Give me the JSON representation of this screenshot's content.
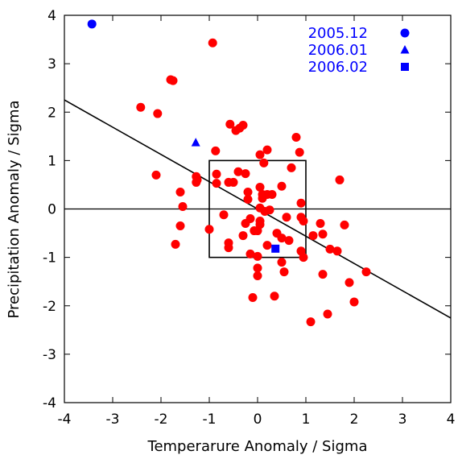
{
  "chart_data": {
    "type": "scatter",
    "xlabel": "Temperarure Anomaly / Sigma",
    "ylabel": "Precipitation Anomaly / Sigma",
    "xlim": [
      -4,
      4
    ],
    "ylim": [
      -4,
      4
    ],
    "x_ticks": [
      -4,
      -3,
      -2,
      -1,
      0,
      1,
      2,
      3,
      4
    ],
    "y_ticks": [
      -4,
      -3,
      -2,
      -1,
      0,
      1,
      2,
      3,
      4
    ],
    "grid": false,
    "legend_position": "top-right",
    "colors": {
      "points": "#ff0000",
      "highlight": "#0000ff",
      "lines": "#000000"
    },
    "reference_lines": {
      "horizontal_zero": true,
      "regression_line": {
        "slope": -0.563,
        "intercept": 0.0
      },
      "box": {
        "x": [
          -1,
          1
        ],
        "y": [
          -1,
          1
        ]
      }
    },
    "series": [
      {
        "marker": "circle",
        "color": "#ff0000",
        "points": [
          [
            -0.93,
            3.43
          ],
          [
            -1.8,
            2.67
          ],
          [
            -1.75,
            2.65
          ],
          [
            -2.42,
            2.1
          ],
          [
            -2.07,
            1.97
          ],
          [
            -0.57,
            1.75
          ],
          [
            -0.45,
            1.62
          ],
          [
            -0.37,
            1.67
          ],
          [
            -0.3,
            1.73
          ],
          [
            -0.87,
            1.2
          ],
          [
            0.8,
            1.48
          ],
          [
            0.87,
            1.17
          ],
          [
            0.2,
            1.22
          ],
          [
            0.05,
            1.12
          ],
          [
            0.13,
            0.95
          ],
          [
            -0.85,
            0.72
          ],
          [
            -1.25,
            0.6
          ],
          [
            -1.27,
            0.67
          ],
          [
            -2.1,
            0.7
          ],
          [
            -1.27,
            0.55
          ],
          [
            -0.85,
            0.53
          ],
          [
            -0.5,
            0.55
          ],
          [
            -0.4,
            0.77
          ],
          [
            -0.25,
            0.73
          ],
          [
            -0.6,
            0.55
          ],
          [
            0.7,
            0.85
          ],
          [
            1.7,
            0.6
          ],
          [
            0.5,
            0.47
          ],
          [
            0.05,
            0.45
          ],
          [
            0.1,
            0.3
          ],
          [
            0.2,
            0.3
          ],
          [
            0.3,
            0.3
          ],
          [
            -0.2,
            0.35
          ],
          [
            0.1,
            0.22
          ],
          [
            -0.2,
            0.2
          ],
          [
            -1.6,
            0.35
          ],
          [
            -1.55,
            0.05
          ],
          [
            0.05,
            0.02
          ],
          [
            0.15,
            -0.05
          ],
          [
            0.25,
            -0.02
          ],
          [
            0.9,
            0.12
          ],
          [
            0.6,
            -0.17
          ],
          [
            0.9,
            -0.17
          ],
          [
            0.95,
            -0.25
          ],
          [
            -0.7,
            -0.12
          ],
          [
            -0.15,
            -0.2
          ],
          [
            0.05,
            -0.25
          ],
          [
            0.05,
            -0.32
          ],
          [
            -0.07,
            -0.45
          ],
          [
            -0.25,
            -0.3
          ],
          [
            0.0,
            -0.45
          ],
          [
            0.4,
            -0.5
          ],
          [
            0.5,
            -0.6
          ],
          [
            1.3,
            -0.3
          ],
          [
            1.8,
            -0.33
          ],
          [
            1.15,
            -0.55
          ],
          [
            1.35,
            -0.52
          ],
          [
            -1.6,
            -0.35
          ],
          [
            -1.7,
            -0.73
          ],
          [
            -1.0,
            -0.42
          ],
          [
            -0.6,
            -0.7
          ],
          [
            -0.6,
            -0.8
          ],
          [
            -0.3,
            -0.55
          ],
          [
            0.2,
            -0.75
          ],
          [
            0.65,
            -0.65
          ],
          [
            0.9,
            -0.87
          ],
          [
            0.95,
            -1.0
          ],
          [
            0.5,
            -1.1
          ],
          [
            1.5,
            -0.83
          ],
          [
            1.65,
            -0.87
          ],
          [
            -0.15,
            -0.93
          ],
          [
            0.0,
            -0.98
          ],
          [
            0.0,
            -1.22
          ],
          [
            0.0,
            -1.38
          ],
          [
            0.55,
            -1.3
          ],
          [
            1.35,
            -1.35
          ],
          [
            1.9,
            -1.52
          ],
          [
            2.25,
            -1.3
          ],
          [
            2.0,
            -1.92
          ],
          [
            -0.1,
            -1.83
          ],
          [
            0.35,
            -1.8
          ],
          [
            1.45,
            -2.17
          ],
          [
            1.1,
            -2.33
          ]
        ]
      },
      {
        "name": "2005.12",
        "marker": "circle",
        "color": "#0000ff",
        "points": [
          [
            -3.43,
            3.82
          ]
        ]
      },
      {
        "name": "2006.01",
        "marker": "triangle",
        "color": "#0000ff",
        "points": [
          [
            -1.28,
            1.37
          ]
        ]
      },
      {
        "name": "2006.02",
        "marker": "square",
        "color": "#0000ff",
        "points": [
          [
            0.37,
            -0.82
          ]
        ]
      }
    ]
  }
}
